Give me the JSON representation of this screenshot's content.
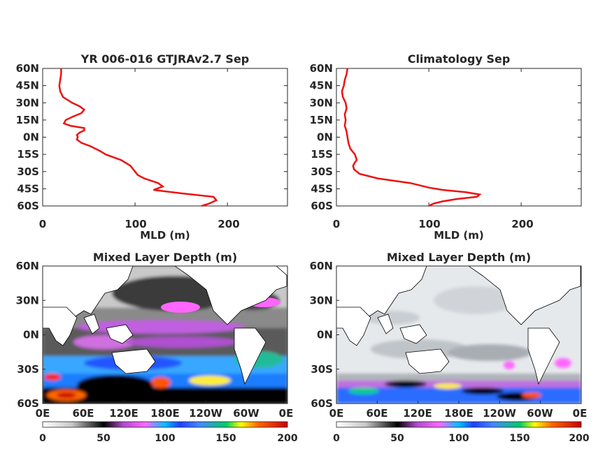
{
  "chart_data": [
    {
      "type": "line",
      "title": "YR 006-016 GTJRAv2.7 Sep",
      "xlabel": "MLD (m)",
      "xlim": [
        0,
        265
      ],
      "x_ticks": [
        "0",
        "100",
        "200"
      ],
      "y_ticks": [
        "60N",
        "45N",
        "30N",
        "15N",
        "0N",
        "15S",
        "30S",
        "45S",
        "60S"
      ],
      "series": [
        {
          "color": "#ee1111",
          "lat": [
            60,
            55,
            50,
            45,
            40,
            35,
            30,
            27,
            24,
            21,
            18,
            15,
            12,
            10,
            8,
            6,
            4,
            2,
            0,
            -2,
            -5,
            -8,
            -12,
            -15,
            -20,
            -25,
            -30,
            -33,
            -36,
            -40,
            -43,
            -46,
            -49,
            -52,
            -55,
            -58,
            -60
          ],
          "mld": [
            20,
            20,
            19,
            18,
            19,
            22,
            32,
            40,
            45,
            42,
            33,
            25,
            23,
            30,
            45,
            45,
            40,
            37,
            38,
            37,
            42,
            52,
            62,
            68,
            85,
            95,
            100,
            103,
            110,
            125,
            130,
            120,
            150,
            185,
            188,
            180,
            172
          ]
        }
      ]
    },
    {
      "type": "line",
      "title": "Climatology Sep",
      "xlabel": "MLD (m)",
      "xlim": [
        0,
        265
      ],
      "x_ticks": [
        "0",
        "100",
        "200"
      ],
      "y_ticks": [
        "60N",
        "45N",
        "30N",
        "15N",
        "0N",
        "15S",
        "30S",
        "45S",
        "60S"
      ],
      "series": [
        {
          "color": "#ee1111",
          "lat": [
            60,
            55,
            50,
            45,
            40,
            35,
            30,
            25,
            20,
            15,
            10,
            5,
            0,
            -5,
            -10,
            -15,
            -20,
            -22,
            -25,
            -28,
            -32,
            -36,
            -40,
            -44,
            -46,
            -48,
            -50,
            -52,
            -54,
            -56,
            -58,
            -60
          ],
          "mld": [
            12,
            11,
            9,
            8,
            6,
            7,
            10,
            11,
            9,
            10,
            9,
            11,
            12,
            13,
            15,
            20,
            22,
            20,
            18,
            19,
            25,
            45,
            80,
            100,
            115,
            140,
            155,
            152,
            130,
            115,
            105,
            100
          ]
        }
      ]
    },
    {
      "type": "heatmap",
      "title": "Mixed Layer Depth (m)",
      "x_ticks": [
        "0E",
        "60E",
        "120E",
        "180E",
        "120W",
        "60W",
        "0E"
      ],
      "y_ticks": [
        "60N",
        "30N",
        "0N",
        "30S",
        "60S"
      ],
      "colorbar": {
        "ticks": [
          "0",
          "50",
          "100",
          "150",
          "200"
        ],
        "range": [
          0,
          200
        ]
      }
    },
    {
      "type": "heatmap",
      "title": "Mixed Layer Depth (m)",
      "x_ticks": [
        "0E",
        "60E",
        "120E",
        "180E",
        "120W",
        "60W",
        "0E"
      ],
      "y_ticks": [
        "60N",
        "30N",
        "0N",
        "30S",
        "60S"
      ],
      "colorbar": {
        "ticks": [
          "0",
          "50",
          "100",
          "150",
          "200"
        ],
        "range": [
          0,
          200
        ]
      }
    }
  ]
}
